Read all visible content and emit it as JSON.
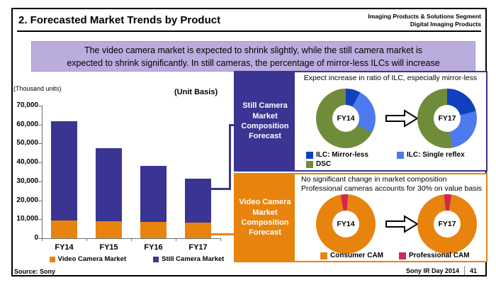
{
  "slide": {
    "title": "2. Forecasted Market Trends by Product",
    "header_right_line1": "Imaging Products & Solutions Segment",
    "header_right_line2": "Digital Imaging Products",
    "message": "The video camera market is expected to shrink slightly, while the still camera market is\nexpected to shrink significantly. In still cameras, the percentage of mirror-less ILCs will increase",
    "units_label": "(Thousand units)",
    "basis_label": "(Unit Basis)",
    "source": "Source: Sony",
    "footer_event": "Sony IR Day 2014",
    "footer_page": "41"
  },
  "chart_data": {
    "bar": {
      "type": "bar",
      "stacked": true,
      "title": "",
      "ylabel": "(Thousand units)",
      "basis": "(Unit Basis)",
      "categories": [
        "FY14",
        "FY15",
        "FY16",
        "FY17"
      ],
      "series": [
        {
          "name": "Video Camera Market",
          "color": "#E8830D",
          "values": [
            9300,
            9000,
            8700,
            8300
          ]
        },
        {
          "name": "Still Camera Market",
          "color": "#3A3492",
          "values": [
            52400,
            38400,
            29500,
            23100
          ]
        }
      ],
      "ylim": [
        0,
        70000
      ],
      "ytick_step": 10000,
      "grid": false,
      "legend_position": "bottom"
    },
    "still_donuts": [
      {
        "type": "pie",
        "label": "FY14",
        "start": 0,
        "segments": [
          {
            "name": "ILC: Mirror-less",
            "color": "#1140BE",
            "pct": 8
          },
          {
            "name": "ILC: Single reflex",
            "color": "#4D7AEF",
            "pct": 25
          },
          {
            "name": "DSC",
            "color": "#6F8C3B",
            "pct": 67
          }
        ]
      },
      {
        "type": "pie",
        "label": "FY17",
        "start": 0,
        "segments": [
          {
            "name": "ILC: Mirror-less",
            "color": "#1140BE",
            "pct": 21
          },
          {
            "name": "ILC: Single reflex",
            "color": "#4D7AEF",
            "pct": 26
          },
          {
            "name": "DSC",
            "color": "#6F8C3B",
            "pct": 53
          }
        ]
      }
    ],
    "video_donuts": [
      {
        "type": "pie",
        "label": "FY14",
        "start": -10,
        "segments": [
          {
            "name": "Professional CAM",
            "color": "#D22850",
            "pct": 4
          },
          {
            "name": "Consumer CAM",
            "color": "#E8830D",
            "pct": 96
          }
        ]
      },
      {
        "type": "pie",
        "label": "FY17",
        "start": -6,
        "segments": [
          {
            "name": "Professional CAM",
            "color": "#D22850",
            "pct": 4
          },
          {
            "name": "Consumer CAM",
            "color": "#E8830D",
            "pct": 96
          }
        ]
      }
    ]
  },
  "still_panel": {
    "label": "Still Camera\nMarket\nComposition\nForecast",
    "headline": "Expect increase in ratio of ILC, especially mirror-less",
    "legend": [
      {
        "name": "ILC: Mirror-less",
        "color": "#1140BE"
      },
      {
        "name": "ILC: Single reflex",
        "color": "#4D7AEF"
      },
      {
        "name": "DSC",
        "color": "#6F8C3B"
      }
    ]
  },
  "video_panel": {
    "label": "Video Camera\nMarket\nComposition\nForecast",
    "note_line1": "No significant change in market composition",
    "note_line2": "Professional cameras accounts for 30% on value basis",
    "legend": [
      {
        "name": "Consumer CAM",
        "color": "#E8830D"
      },
      {
        "name": "Professional CAM",
        "color": "#D22850"
      }
    ]
  },
  "colors": {
    "navy": "#3A3492",
    "orange": "#E8830D",
    "lavender": "#BBACDE",
    "red": "#D22850"
  }
}
